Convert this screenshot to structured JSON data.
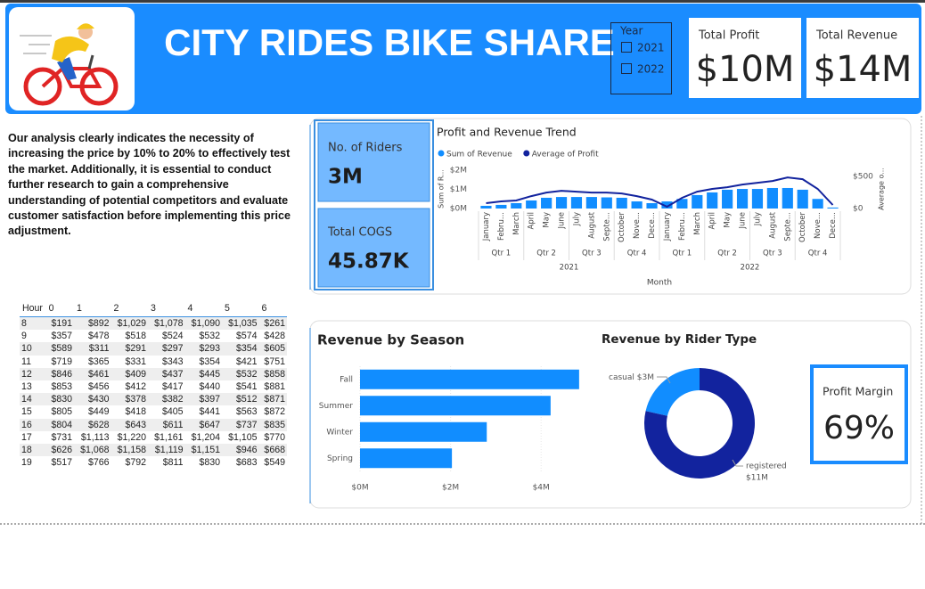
{
  "header": {
    "title": "CITY RIDES BIKE SHARE"
  },
  "year_slicer": {
    "title": "Year",
    "options": [
      "2021",
      "2022"
    ]
  },
  "kpis": {
    "total_profit": {
      "label": "Total Profit",
      "value": "$10M"
    },
    "total_revenue": {
      "label": "Total Revenue",
      "value": "$14M"
    },
    "riders": {
      "label": "No. of Riders",
      "value": "3M"
    },
    "cogs": {
      "label": "Total COGS",
      "value": "45.87K"
    },
    "profit_margin": {
      "label": "Profit Margin",
      "value": "69%"
    }
  },
  "note": "Our analysis clearly indicates the necessity of increasing the price by 10% to 20% to effectively test the market. Additionally, it is essential to conduct further research to gain a comprehensive understanding of potential competitors and evaluate customer satisfaction before implementing this price adjustment.",
  "table": {
    "columns": [
      "Hour",
      "0",
      "1",
      "2",
      "3",
      "4",
      "5",
      "6"
    ],
    "rows": [
      [
        "8",
        "$191",
        "$892",
        "$1,029",
        "$1,078",
        "$1,090",
        "$1,035",
        "$261"
      ],
      [
        "9",
        "$357",
        "$478",
        "$518",
        "$524",
        "$532",
        "$574",
        "$428"
      ],
      [
        "10",
        "$589",
        "$311",
        "$291",
        "$297",
        "$293",
        "$354",
        "$605"
      ],
      [
        "11",
        "$719",
        "$365",
        "$331",
        "$343",
        "$354",
        "$421",
        "$751"
      ],
      [
        "12",
        "$846",
        "$461",
        "$409",
        "$437",
        "$445",
        "$532",
        "$858"
      ],
      [
        "13",
        "$853",
        "$456",
        "$412",
        "$417",
        "$440",
        "$541",
        "$881"
      ],
      [
        "14",
        "$830",
        "$430",
        "$378",
        "$382",
        "$397",
        "$512",
        "$871"
      ],
      [
        "15",
        "$805",
        "$449",
        "$418",
        "$405",
        "$441",
        "$563",
        "$872"
      ],
      [
        "16",
        "$804",
        "$628",
        "$643",
        "$611",
        "$647",
        "$737",
        "$835"
      ],
      [
        "17",
        "$731",
        "$1,113",
        "$1,220",
        "$1,161",
        "$1,204",
        "$1,105",
        "$770"
      ],
      [
        "18",
        "$626",
        "$1,068",
        "$1,158",
        "$1,119",
        "$1,151",
        "$946",
        "$668"
      ],
      [
        "19",
        "$517",
        "$766",
        "$792",
        "$811",
        "$830",
        "$683",
        "$549"
      ]
    ]
  },
  "chart_data": [
    {
      "type": "combo",
      "title": "Profit and Revenue Trend",
      "x_label": "Month",
      "y_label": "Sum of R...",
      "y2_label": "Average o...",
      "categories": [
        "January",
        "Febru...",
        "March",
        "April",
        "May",
        "June",
        "July",
        "August",
        "Septe...",
        "October",
        "Nove...",
        "Dece...",
        "January",
        "Febru...",
        "March",
        "April",
        "May",
        "June",
        "July",
        "August",
        "Septe...",
        "October",
        "Nove...",
        "Dece..."
      ],
      "quarters": [
        "Qtr 1",
        "Qtr 2",
        "Qtr 3",
        "Qtr 4",
        "Qtr 1",
        "Qtr 2",
        "Qtr 3",
        "Qtr 4"
      ],
      "years": [
        "2021",
        "2022"
      ],
      "series": [
        {
          "name": "Sum of Revenue",
          "type": "bar",
          "color": "#118dff",
          "values": [
            140000,
            190000,
            280000,
            420000,
            560000,
            600000,
            600000,
            600000,
            580000,
            560000,
            370000,
            280000,
            370000,
            500000,
            700000,
            840000,
            980000,
            1020000,
            1020000,
            1070000,
            1070000,
            980000,
            500000,
            50000
          ]
        },
        {
          "name": "Average of Profit",
          "type": "line",
          "axis": "y2",
          "color": "#12239e",
          "values": [
            83,
            111,
            125,
            194,
            250,
            278,
            264,
            250,
            250,
            236,
            194,
            139,
            28,
            167,
            264,
            306,
            333,
            375,
            403,
            431,
            486,
            458,
            306,
            56
          ]
        }
      ],
      "ylim": [
        0,
        2300000
      ],
      "yticks": [
        {
          "value": 0,
          "label": "$0M"
        },
        {
          "value": 1000000,
          "label": "$1M"
        },
        {
          "value": 2000000,
          "label": "$2M"
        }
      ],
      "y2lim": [
        0,
        690
      ],
      "y2ticks": [
        {
          "value": 0,
          "label": "$0"
        },
        {
          "value": 500,
          "label": "$500"
        }
      ]
    },
    {
      "type": "bar",
      "orientation": "horizontal",
      "title": "Revenue by Season",
      "color": "#118dff",
      "categories": [
        "Fall",
        "Summer",
        "Winter",
        "Spring"
      ],
      "values": [
        4840000,
        4210000,
        2800000,
        2030000
      ],
      "xlim": [
        0,
        5000000
      ],
      "xticks": [
        {
          "value": 0,
          "label": "$0M"
        },
        {
          "value": 2000000,
          "label": "$2M"
        },
        {
          "value": 4000000,
          "label": "$4M"
        }
      ]
    },
    {
      "type": "donut",
      "title": "Revenue by Rider Type",
      "categories": [
        "casual",
        "registered"
      ],
      "values": [
        3,
        11
      ],
      "value_labels": [
        "$3M",
        "$11M"
      ],
      "colors": [
        "#118dff",
        "#12239e"
      ]
    }
  ]
}
